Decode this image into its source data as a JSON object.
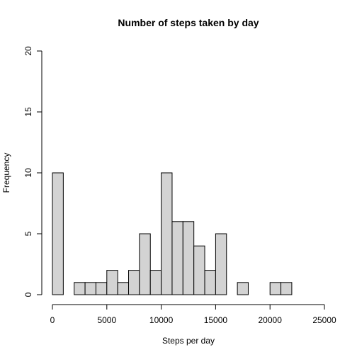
{
  "chart_data": {
    "type": "bar",
    "title": "Number of steps taken by day",
    "xlabel": "Steps per day",
    "ylabel": "Frequency",
    "xlim": [
      0,
      25000
    ],
    "ylim": [
      0,
      20
    ],
    "bin_width": 1000,
    "bin_starts": [
      0,
      2000,
      3000,
      4000,
      5000,
      6000,
      7000,
      8000,
      9000,
      10000,
      11000,
      12000,
      13000,
      14000,
      15000,
      17000,
      20000,
      21000
    ],
    "values": [
      10,
      1,
      1,
      1,
      2,
      1,
      2,
      5,
      2,
      10,
      6,
      6,
      4,
      2,
      5,
      1,
      1,
      1
    ],
    "x_ticks": [
      "0",
      "5000",
      "10000",
      "15000",
      "20000",
      "25000"
    ],
    "y_ticks": [
      "0",
      "5",
      "10",
      "15",
      "20"
    ],
    "bar_fill": "#d3d3d3",
    "bar_stroke": "#000000",
    "grid": false
  }
}
